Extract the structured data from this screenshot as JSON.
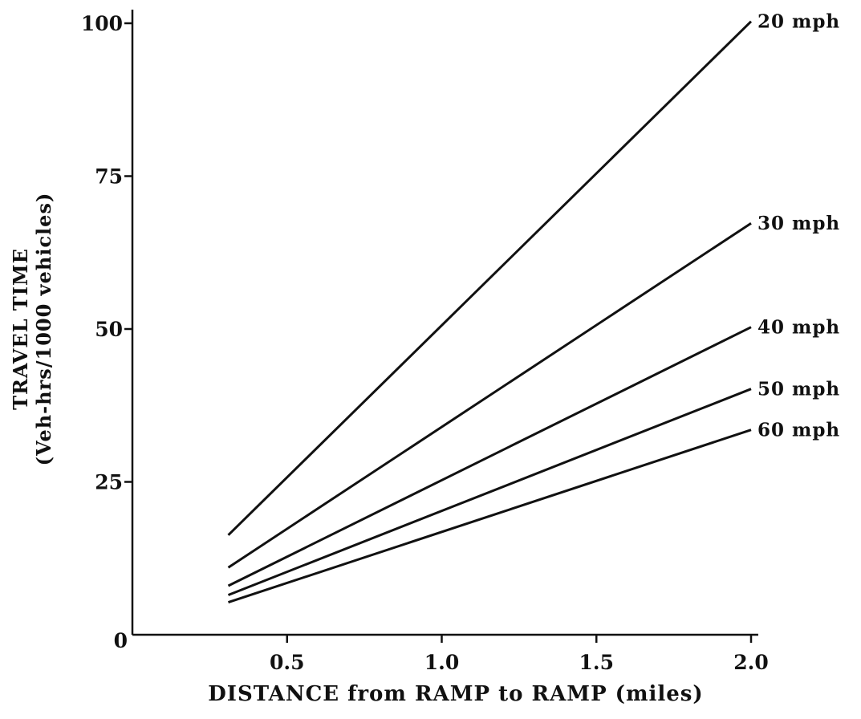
{
  "chart_data": {
    "type": "line",
    "xlabel": "DISTANCE from RAMP to RAMP (miles)",
    "ylabel": "TRAVEL TIME",
    "ylabel_sub": "(Veh-hrs/1000 vehicles)",
    "xlim": [
      0,
      2.0
    ],
    "ylim": [
      0,
      100
    ],
    "x_ticks": [
      "0.5",
      "1.0",
      "1.5",
      "2.0"
    ],
    "y_ticks": [
      "0",
      "25",
      "50",
      "75",
      "100"
    ],
    "grid": false,
    "series": [
      {
        "name": "20 mph",
        "x": [
          0.31,
          2.0
        ],
        "y": [
          16.3,
          100.3
        ]
      },
      {
        "name": "30 mph",
        "x": [
          0.31,
          2.0
        ],
        "y": [
          11.0,
          67.3
        ]
      },
      {
        "name": "40 mph",
        "x": [
          0.31,
          2.0
        ],
        "y": [
          8.0,
          50.3
        ]
      },
      {
        "name": "50 mph",
        "x": [
          0.31,
          2.0
        ],
        "y": [
          6.5,
          40.2
        ]
      },
      {
        "name": "60 mph",
        "x": [
          0.31,
          2.0
        ],
        "y": [
          5.3,
          33.5
        ]
      }
    ],
    "colors": {
      "ink": "#111111",
      "background": "#ffffff"
    }
  }
}
